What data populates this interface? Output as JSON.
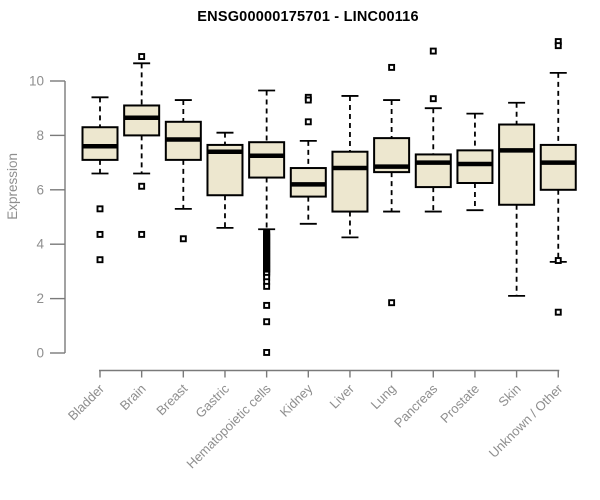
{
  "colors": {
    "background": "#ffffff",
    "box_fill": "#ede7cf",
    "box_stroke": "#000000",
    "median": "#000000",
    "whisker": "#000000",
    "outlier_fill": "#ffffff",
    "outlier_stroke": "#000000",
    "axis_line": "#7a7a7a",
    "tick_label": "#8e8e8e",
    "title": "#000000"
  },
  "chart_data": {
    "type": "boxplot",
    "title": "ENSG00000175701 - LINC00116",
    "ylabel": "Expression",
    "xlabel": "",
    "grid": "off",
    "yticks": [
      0,
      2,
      4,
      6,
      8,
      10
    ],
    "ylim": [
      0,
      11.6
    ],
    "categories": [
      "Bladder",
      "Brain",
      "Breast",
      "Gastric",
      "Hematopoietic cells",
      "Kidney",
      "Liver",
      "Lung",
      "Pancreas",
      "Prostate",
      "Skin",
      "Unknown / Other"
    ],
    "series": [
      {
        "name": "Bladder",
        "whisker_low": 6.6,
        "q1": 7.1,
        "median": 7.6,
        "q3": 8.3,
        "whisker_high": 9.4,
        "outliers": [
          5.3,
          4.36,
          3.43
        ]
      },
      {
        "name": "Brain",
        "whisker_low": 6.6,
        "q1": 8.0,
        "median": 8.65,
        "q3": 9.1,
        "whisker_high": 10.65,
        "outliers": [
          10.9,
          6.13,
          4.36
        ]
      },
      {
        "name": "Breast",
        "whisker_low": 5.3,
        "q1": 7.1,
        "median": 7.85,
        "q3": 8.5,
        "whisker_high": 9.3,
        "outliers": [
          4.2
        ]
      },
      {
        "name": "Gastric",
        "whisker_low": 4.6,
        "q1": 5.8,
        "median": 7.4,
        "q3": 7.65,
        "whisker_high": 8.1,
        "outliers": []
      },
      {
        "name": "Hematopoietic cells",
        "whisker_low": 4.55,
        "q1": 6.45,
        "median": 7.25,
        "q3": 7.75,
        "whisker_high": 9.65,
        "outliers": [
          4.45,
          4.4,
          4.35,
          4.3,
          4.25,
          4.2,
          4.15,
          4.1,
          4.05,
          4.0,
          3.95,
          3.9,
          3.85,
          3.8,
          3.75,
          3.7,
          3.65,
          3.6,
          3.55,
          3.5,
          3.45,
          3.4,
          3.35,
          3.3,
          3.25,
          3.2,
          3.15,
          3.1,
          3.05,
          3.0,
          2.95,
          2.9,
          2.78,
          2.62,
          2.45,
          1.75,
          1.15,
          0.02
        ]
      },
      {
        "name": "Kidney",
        "whisker_low": 4.75,
        "q1": 5.75,
        "median": 6.2,
        "q3": 6.8,
        "whisker_high": 7.8,
        "outliers": [
          9.4,
          9.3,
          8.5
        ]
      },
      {
        "name": "Liver",
        "whisker_low": 4.25,
        "q1": 5.2,
        "median": 6.8,
        "q3": 7.4,
        "whisker_high": 9.45,
        "outliers": []
      },
      {
        "name": "Lung",
        "whisker_low": 5.2,
        "q1": 6.65,
        "median": 6.85,
        "q3": 7.9,
        "whisker_high": 9.3,
        "outliers": [
          10.5,
          1.85
        ]
      },
      {
        "name": "Pancreas",
        "whisker_low": 5.2,
        "q1": 6.1,
        "median": 7.0,
        "q3": 7.3,
        "whisker_high": 9.0,
        "outliers": [
          11.1,
          9.35
        ]
      },
      {
        "name": "Prostate",
        "whisker_low": 5.25,
        "q1": 6.25,
        "median": 6.95,
        "q3": 7.45,
        "whisker_high": 8.8,
        "outliers": []
      },
      {
        "name": "Skin",
        "whisker_low": 2.1,
        "q1": 5.45,
        "median": 7.45,
        "q3": 8.4,
        "whisker_high": 9.2,
        "outliers": []
      },
      {
        "name": "Unknown / Other",
        "whisker_low": 3.35,
        "q1": 6.0,
        "median": 7.0,
        "q3": 7.65,
        "whisker_high": 10.3,
        "outliers": [
          11.45,
          11.3,
          3.4,
          1.5
        ]
      }
    ]
  }
}
